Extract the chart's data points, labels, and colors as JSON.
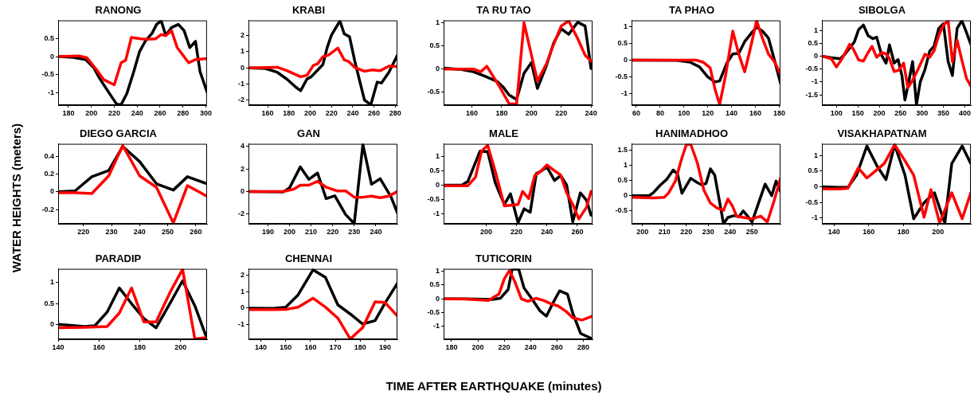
{
  "chart_data": [
    {
      "type": "line",
      "title": "RANONG",
      "xlim": [
        171,
        301
      ],
      "xticks": [
        180,
        200,
        220,
        240,
        260,
        280,
        300
      ],
      "ylim": [
        -1.34,
        1.0
      ],
      "yticks": [
        -1,
        -0.5,
        0,
        0.5
      ],
      "marker": "none",
      "series": [
        {
          "color": "#ff0000",
          "x": [
            171,
            189,
            196,
            204,
            211,
            220,
            226,
            230,
            235,
            243,
            249,
            256,
            261,
            265,
            270,
            275,
            285,
            291,
            300
          ],
          "values": [
            0,
            0.02,
            -0.03,
            -0.34,
            -0.64,
            -0.78,
            -0.17,
            -0.1,
            0.53,
            0.49,
            0.48,
            0.49,
            0.61,
            0.58,
            0.72,
            0.25,
            -0.17,
            -0.08,
            -0.06
          ]
        },
        {
          "color": "#000000",
          "x": [
            171,
            184,
            195,
            202,
            207,
            214,
            222,
            226,
            231,
            237,
            242,
            247,
            253,
            257,
            261,
            265,
            270,
            276,
            281,
            286,
            291,
            295,
            301
          ],
          "values": [
            0,
            -0.02,
            -0.08,
            -0.3,
            -0.59,
            -0.93,
            -1.31,
            -1.33,
            -1.02,
            -0.42,
            0.13,
            0.42,
            0.64,
            0.89,
            0.99,
            0.59,
            0.8,
            0.89,
            0.72,
            0.25,
            0.42,
            -0.42,
            -0.97
          ]
        }
      ]
    },
    {
      "type": "line",
      "title": "KRABI",
      "xlim": [
        142,
        282
      ],
      "xticks": [
        160,
        180,
        200,
        220,
        240,
        260,
        280
      ],
      "ylim": [
        -2.3,
        2.93
      ],
      "yticks": [
        -2,
        -1,
        0,
        1,
        2
      ],
      "marker": "none",
      "series": [
        {
          "color": "#ff0000",
          "x": [
            142,
            169,
            178,
            191,
            197,
            203,
            207,
            212,
            217,
            226,
            232,
            236,
            242,
            251,
            258,
            266,
            274,
            282
          ],
          "values": [
            0,
            0.04,
            -0.17,
            -0.55,
            -0.46,
            0.15,
            0.25,
            0.69,
            0.78,
            1.22,
            0.5,
            0.4,
            0.02,
            -0.21,
            -0.13,
            -0.17,
            0.11,
            0.08
          ]
        },
        {
          "color": "#000000",
          "x": [
            142,
            158,
            169,
            178,
            187,
            191,
            197,
            201,
            212,
            216,
            220,
            228,
            232,
            237,
            242,
            251,
            257,
            263,
            267,
            274,
            282
          ],
          "values": [
            0,
            -0.04,
            -0.27,
            -0.69,
            -1.22,
            -1.41,
            -0.69,
            -0.55,
            0.21,
            1.26,
            2.02,
            2.9,
            2.1,
            1.92,
            0.4,
            -1.98,
            -2.28,
            -0.88,
            -0.93,
            -0.27,
            0.78
          ]
        }
      ]
    },
    {
      "type": "line",
      "title": "TA RU TAO",
      "xlim": [
        141,
        241
      ],
      "xticks": [
        160,
        180,
        200,
        220,
        240
      ],
      "ylim": [
        -0.78,
        1.05
      ],
      "yticks": [
        -0.5,
        0,
        0.5,
        1
      ],
      "marker": "none",
      "series": [
        {
          "color": "#ff0000",
          "x": [
            141,
            161,
            166,
            170,
            178,
            185,
            190,
            195,
            199,
            204,
            210,
            215,
            220,
            225,
            231,
            236,
            240
          ],
          "values": [
            0,
            0,
            -0.06,
            0.06,
            -0.35,
            -0.75,
            -0.76,
            1.0,
            0.44,
            -0.26,
            0.11,
            0.54,
            0.93,
            1.04,
            0.66,
            0.3,
            0.17
          ]
        },
        {
          "color": "#000000",
          "x": [
            141,
            153,
            161,
            169,
            177,
            181,
            185,
            190,
            195,
            200,
            204,
            210,
            215,
            220,
            225,
            231,
            236,
            240
          ],
          "values": [
            0.02,
            -0.01,
            -0.06,
            -0.16,
            -0.27,
            -0.39,
            -0.56,
            -0.66,
            -0.09,
            0.14,
            -0.42,
            0.07,
            0.57,
            0.87,
            0.75,
            1.01,
            0.93,
            0.01
          ]
        }
      ]
    },
    {
      "type": "line",
      "title": "TA PHAO",
      "xlim": [
        56,
        181
      ],
      "xticks": [
        60,
        80,
        100,
        120,
        140,
        160,
        180
      ],
      "ylim": [
        -1.34,
        1.18
      ],
      "yticks": [
        -1,
        -0.5,
        0,
        0.5,
        1
      ],
      "marker": "none",
      "series": [
        {
          "color": "#ff0000",
          "x": [
            56,
            110,
            116,
            122,
            126,
            130,
            135,
            141,
            146,
            151,
            155,
            161,
            166,
            171,
            176,
            181
          ],
          "values": [
            0,
            0,
            -0.06,
            -0.23,
            -0.86,
            -1.32,
            -0.45,
            0.86,
            0.18,
            -0.35,
            0.23,
            1.17,
            0.64,
            0.18,
            -0.05,
            -0.41
          ]
        },
        {
          "color": "#000000",
          "x": [
            56,
            94,
            105,
            113,
            120,
            126,
            130,
            136,
            141,
            146,
            151,
            157,
            161,
            166,
            171,
            176,
            181
          ],
          "values": [
            0,
            -0.01,
            -0.06,
            -0.2,
            -0.5,
            -0.65,
            -0.62,
            -0.09,
            0.18,
            0.2,
            0.55,
            0.82,
            0.98,
            0.86,
            0.65,
            0,
            -0.68
          ]
        }
      ]
    },
    {
      "type": "line",
      "title": "SIBOLGA",
      "xlim": [
        66,
        414
      ],
      "xticks": [
        100,
        150,
        200,
        250,
        300,
        350,
        400
      ],
      "ylim": [
        -1.9,
        1.39
      ],
      "yticks": [
        -1.5,
        -1,
        -0.5,
        0,
        0.5,
        1
      ],
      "marker": "none",
      "series": [
        {
          "color": "#ff0000",
          "x": [
            66,
            88,
            100,
            113,
            131,
            140,
            152,
            163,
            174,
            183,
            194,
            206,
            217,
            224,
            235,
            246,
            257,
            267,
            278,
            289,
            307,
            318,
            328,
            339,
            350,
            361,
            371,
            382,
            393,
            404,
            414
          ],
          "values": [
            0,
            -0.1,
            -0.42,
            -0.1,
            0.46,
            0.26,
            -0.15,
            -0.19,
            0.14,
            0.38,
            -0.04,
            0.14,
            0.08,
            -0.1,
            -0.6,
            -0.54,
            -0.27,
            -1.23,
            -0.93,
            -0.57,
            0.08,
            -0.04,
            0.2,
            0.8,
            1.21,
            1.38,
            -0.21,
            0.62,
            -0.15,
            -0.87,
            -1.16
          ]
        },
        {
          "color": "#000000",
          "x": [
            66,
            88,
            109,
            120,
            131,
            142,
            152,
            163,
            174,
            185,
            194,
            206,
            216,
            224,
            235,
            244,
            253,
            260,
            269,
            278,
            287,
            296,
            307,
            318,
            328,
            339,
            350,
            361,
            371,
            382,
            393,
            404,
            414
          ],
          "values": [
            0,
            -0.06,
            -0.1,
            0.08,
            0.32,
            0.56,
            1.04,
            1.21,
            0.8,
            0.68,
            0.74,
            0.02,
            -0.27,
            0.44,
            -0.27,
            -0.13,
            -0.75,
            -1.7,
            -0.99,
            -0.21,
            -1.88,
            -0.99,
            -0.51,
            0.2,
            0.38,
            1.08,
            1.26,
            -0.21,
            -0.75,
            1.08,
            1.38,
            0.92,
            0.46
          ]
        }
      ]
    },
    {
      "type": "line",
      "title": "DIEGO GARCIA",
      "ylabel": "WATER HEIGHTS (meters)",
      "xlim": [
        211,
        264
      ],
      "xticks": [
        220,
        230,
        240,
        250,
        260
      ],
      "ylim": [
        -0.36,
        0.54
      ],
      "yticks": [
        -0.2,
        0,
        0.2,
        0.4
      ],
      "marker": "none",
      "series": [
        {
          "color": "#ff0000",
          "x": [
            211,
            217,
            223,
            229,
            234,
            240,
            246,
            252,
            257,
            264
          ],
          "values": [
            -0.01,
            -0.01,
            -0.02,
            0.18,
            0.52,
            0.18,
            0.05,
            -0.35,
            0.07,
            -0.05
          ]
        },
        {
          "color": "#000000",
          "x": [
            211,
            217,
            223,
            229,
            234,
            240,
            246,
            252,
            257,
            264
          ],
          "values": [
            0,
            0.01,
            0.17,
            0.24,
            0.51,
            0.34,
            0.09,
            0.02,
            0.17,
            0.09
          ]
        }
      ]
    },
    {
      "type": "line",
      "title": "GAN",
      "xlim": [
        181,
        250
      ],
      "xticks": [
        190,
        200,
        210,
        220,
        230,
        240
      ],
      "ylim": [
        -2.87,
        4.23
      ],
      "yticks": [
        -2,
        0,
        2,
        4
      ],
      "marker": "none",
      "series": [
        {
          "color": "#ff0000",
          "x": [
            181,
            197,
            202,
            205,
            209,
            213,
            217,
            222,
            226,
            230,
            234,
            238,
            242,
            246,
            250
          ],
          "values": [
            0,
            0,
            0.21,
            0.56,
            0.56,
            0.9,
            0.38,
            0.05,
            0.05,
            -0.51,
            -0.51,
            -0.41,
            -0.56,
            -0.41,
            0
          ]
        },
        {
          "color": "#000000",
          "x": [
            181,
            197,
            200,
            205,
            209,
            213,
            217,
            221,
            226,
            230,
            234,
            238,
            242,
            247,
            250
          ],
          "values": [
            0,
            -0.05,
            0.31,
            2.18,
            1.08,
            1.64,
            -0.64,
            -0.38,
            -2.05,
            -2.85,
            4.18,
            0.64,
            1.13,
            -0.46,
            -1.9
          ]
        }
      ]
    },
    {
      "type": "line",
      "title": "MALE",
      "xlim": [
        172,
        270
      ],
      "xticks": [
        200,
        220,
        240,
        260
      ],
      "ylim": [
        -1.34,
        1.43
      ],
      "yticks": [
        -1,
        -0.5,
        0,
        0.5,
        1
      ],
      "marker": "none",
      "series": [
        {
          "color": "#ff0000",
          "x": [
            172,
            184,
            188,
            193,
            197,
            201,
            206,
            212,
            216,
            221,
            224,
            228,
            232,
            236,
            240,
            245,
            249,
            253,
            257,
            261,
            266,
            269
          ],
          "values": [
            -0.02,
            -0.02,
            -0.02,
            0.28,
            1.18,
            1.38,
            0.48,
            -0.72,
            -0.7,
            -0.67,
            -0.22,
            -0.47,
            0.33,
            0.48,
            0.7,
            0.5,
            0.35,
            -0.27,
            -0.67,
            -1.17,
            -0.77,
            -0.22
          ]
        },
        {
          "color": "#000000",
          "x": [
            172,
            184,
            188,
            196,
            201,
            206,
            212,
            216,
            221,
            225,
            229,
            233,
            236,
            240,
            245,
            249,
            253,
            257,
            262,
            266,
            269
          ],
          "values": [
            0,
            0,
            0.13,
            1.18,
            1.16,
            0.08,
            -0.67,
            -0.3,
            -1.3,
            -0.82,
            -0.94,
            0.4,
            0.48,
            0.63,
            0.16,
            0.33,
            0,
            -1.27,
            -0.27,
            -0.52,
            -1.04
          ]
        }
      ]
    },
    {
      "type": "line",
      "title": "HANIMADHOO",
      "xlim": [
        195,
        263
      ],
      "xticks": [
        200,
        210,
        220,
        230,
        240,
        250
      ],
      "ylim": [
        -0.92,
        1.7
      ],
      "yticks": [
        -0.5,
        0,
        0.5,
        1,
        1.5
      ],
      "marker": "none",
      "series": [
        {
          "color": "#ff0000",
          "x": [
            195,
            205,
            210,
            212,
            215,
            218,
            220,
            222,
            225,
            228,
            231,
            234,
            237,
            239,
            241,
            243,
            246,
            250,
            254,
            257,
            260,
            263
          ],
          "values": [
            -0.05,
            -0.07,
            -0.05,
            0.1,
            0.48,
            1.24,
            1.67,
            1.69,
            1.09,
            0.19,
            -0.24,
            -0.4,
            -0.48,
            -0.11,
            -0.33,
            -0.67,
            -0.71,
            -0.76,
            -0.67,
            -0.86,
            -0.19,
            0.57
          ]
        },
        {
          "color": "#000000",
          "x": [
            195,
            203,
            205,
            208,
            211,
            214,
            216,
            218,
            222,
            225,
            227,
            229,
            231,
            233,
            237,
            239,
            242,
            244,
            246,
            248,
            250,
            253,
            256,
            259,
            261,
            263
          ],
          "values": [
            0,
            0,
            0.1,
            0.34,
            0.53,
            0.84,
            0.71,
            0.08,
            0.57,
            0.43,
            0.36,
            0.4,
            0.88,
            0.67,
            -0.92,
            -0.71,
            -0.65,
            -0.69,
            -0.5,
            -0.67,
            -0.86,
            -0.24,
            0.38,
            0,
            0.48,
            0.14
          ]
        }
      ]
    },
    {
      "type": "line",
      "title": "VISAKHAPATNAM",
      "xlim": [
        133,
        219
      ],
      "xticks": [
        140,
        160,
        180,
        200
      ],
      "ylim": [
        -1.18,
        1.37
      ],
      "yticks": [
        -1,
        -0.5,
        0,
        0.5,
        1
      ],
      "marker": "none",
      "series": [
        {
          "color": "#ff0000",
          "x": [
            133,
            143,
            148,
            154,
            159,
            163,
            169,
            175,
            181,
            186,
            192,
            196,
            201,
            208,
            214,
            219
          ],
          "values": [
            -0.07,
            -0.07,
            -0.05,
            0.6,
            0.28,
            0.46,
            0.74,
            1.34,
            0.83,
            0.37,
            -0.97,
            -0.09,
            -1.16,
            -0.19,
            -1.02,
            -0.19
          ]
        },
        {
          "color": "#000000",
          "x": [
            133,
            142,
            148,
            153,
            159,
            165,
            170,
            175,
            181,
            186,
            192,
            198,
            204,
            208,
            214,
            219
          ],
          "values": [
            0,
            -0.02,
            -0.02,
            0.37,
            1.3,
            0.65,
            0.23,
            1.34,
            0.37,
            -1.02,
            -0.51,
            -0.19,
            -1.16,
            0.74,
            1.3,
            0.74
          ]
        }
      ]
    },
    {
      "type": "line",
      "title": "PARADIP",
      "xlim": [
        140,
        213
      ],
      "xticks": [
        140,
        160,
        180,
        200
      ],
      "ylim": [
        -0.34,
        1.32
      ],
      "yticks": [
        0,
        0.5,
        1
      ],
      "marker": "none",
      "series": [
        {
          "color": "#ff0000",
          "x": [
            140,
            153,
            158,
            164,
            170,
            176,
            182,
            188,
            195,
            201,
            207,
            213
          ],
          "values": [
            -0.07,
            -0.06,
            -0.05,
            -0.04,
            0.28,
            0.87,
            0.07,
            0.07,
            0.78,
            1.31,
            -0.33,
            -0.3
          ]
        },
        {
          "color": "#000000",
          "x": [
            140,
            153,
            158,
            164,
            170,
            176,
            182,
            188,
            195,
            201,
            207,
            213
          ],
          "values": [
            0.01,
            -0.04,
            -0.02,
            0.3,
            0.87,
            0.5,
            0.15,
            -0.07,
            0.52,
            1.04,
            0.45,
            -0.33
          ]
        }
      ]
    },
    {
      "type": "line",
      "title": "CHENNAI",
      "xlim": [
        135,
        195
      ],
      "xticks": [
        140,
        150,
        160,
        170,
        180,
        190
      ],
      "ylim": [
        -1.87,
        2.36
      ],
      "yticks": [
        -1,
        0,
        1,
        2
      ],
      "marker": "none",
      "series": [
        {
          "color": "#ff0000",
          "x": [
            135,
            145,
            150,
            155,
            161,
            166,
            171,
            176,
            181,
            186,
            190,
            195
          ],
          "values": [
            -0.09,
            -0.09,
            -0.08,
            0.06,
            0.6,
            0.06,
            -0.6,
            -1.85,
            -1.17,
            0.38,
            0.34,
            -0.47
          ]
        },
        {
          "color": "#000000",
          "x": [
            135,
            145,
            150,
            155,
            161,
            166,
            171,
            176,
            181,
            186,
            190,
            195
          ],
          "values": [
            0,
            -0.02,
            0.06,
            0.8,
            2.3,
            1.85,
            0.2,
            -0.35,
            -0.95,
            -0.75,
            0.3,
            1.5
          ]
        }
      ]
    },
    {
      "type": "line",
      "title": "TUTICORIN",
      "xlabel": "TIME AFTER EARTHQUAKE (minutes)",
      "xlim": [
        174,
        287
      ],
      "xticks": [
        180,
        200,
        220,
        240,
        260,
        280
      ],
      "ylim": [
        -1.47,
        1.09
      ],
      "yticks": [
        -1,
        -0.5,
        0,
        0.5,
        1
      ],
      "marker": "none",
      "series": [
        {
          "color": "#ff0000",
          "x": [
            174,
            191,
            208,
            216,
            220,
            224,
            228,
            233,
            238,
            244,
            250,
            255,
            261,
            267,
            272,
            279,
            287
          ],
          "values": [
            0,
            -0.01,
            -0.06,
            0.17,
            0.72,
            1.03,
            0.63,
            0,
            -0.09,
            0.02,
            -0.06,
            -0.17,
            -0.26,
            -0.46,
            -0.69,
            -0.77,
            -0.63
          ]
        },
        {
          "color": "#000000",
          "x": [
            174,
            191,
            211,
            217,
            223,
            226,
            231,
            235,
            241,
            247,
            252,
            258,
            262,
            268,
            272,
            278,
            287
          ],
          "values": [
            0,
            0,
            -0.02,
            0.02,
            0.34,
            1.08,
            1.08,
            0.4,
            0,
            -0.43,
            -0.63,
            -0.06,
            0.29,
            0.17,
            -0.52,
            -1.26,
            -1.46
          ]
        }
      ]
    }
  ]
}
